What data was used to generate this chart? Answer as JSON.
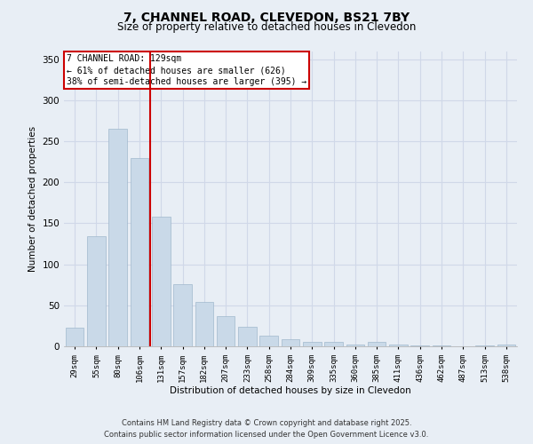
{
  "title_line1": "7, CHANNEL ROAD, CLEVEDON, BS21 7BY",
  "title_line2": "Size of property relative to detached houses in Clevedon",
  "xlabel": "Distribution of detached houses by size in Clevedon",
  "ylabel": "Number of detached properties",
  "categories": [
    "29sqm",
    "55sqm",
    "80sqm",
    "106sqm",
    "131sqm",
    "157sqm",
    "182sqm",
    "207sqm",
    "233sqm",
    "258sqm",
    "284sqm",
    "309sqm",
    "335sqm",
    "360sqm",
    "385sqm",
    "411sqm",
    "436sqm",
    "462sqm",
    "487sqm",
    "513sqm",
    "538sqm"
  ],
  "values": [
    23,
    134,
    265,
    230,
    158,
    76,
    54,
    37,
    24,
    13,
    9,
    5,
    5,
    2,
    5,
    2,
    1,
    1,
    0,
    1,
    2
  ],
  "bar_color": "#c9d9e8",
  "bar_edge_color": "#a0b8cc",
  "grid_color": "#d0d8e8",
  "background_color": "#e8eef5",
  "vline_index": 4,
  "vline_color": "#cc0000",
  "annotation_text": "7 CHANNEL ROAD: 129sqm\n← 61% of detached houses are smaller (626)\n38% of semi-detached houses are larger (395) →",
  "ylim": [
    0,
    360
  ],
  "yticks": [
    0,
    50,
    100,
    150,
    200,
    250,
    300,
    350
  ],
  "footer_line1": "Contains HM Land Registry data © Crown copyright and database right 2025.",
  "footer_line2": "Contains public sector information licensed under the Open Government Licence v3.0."
}
